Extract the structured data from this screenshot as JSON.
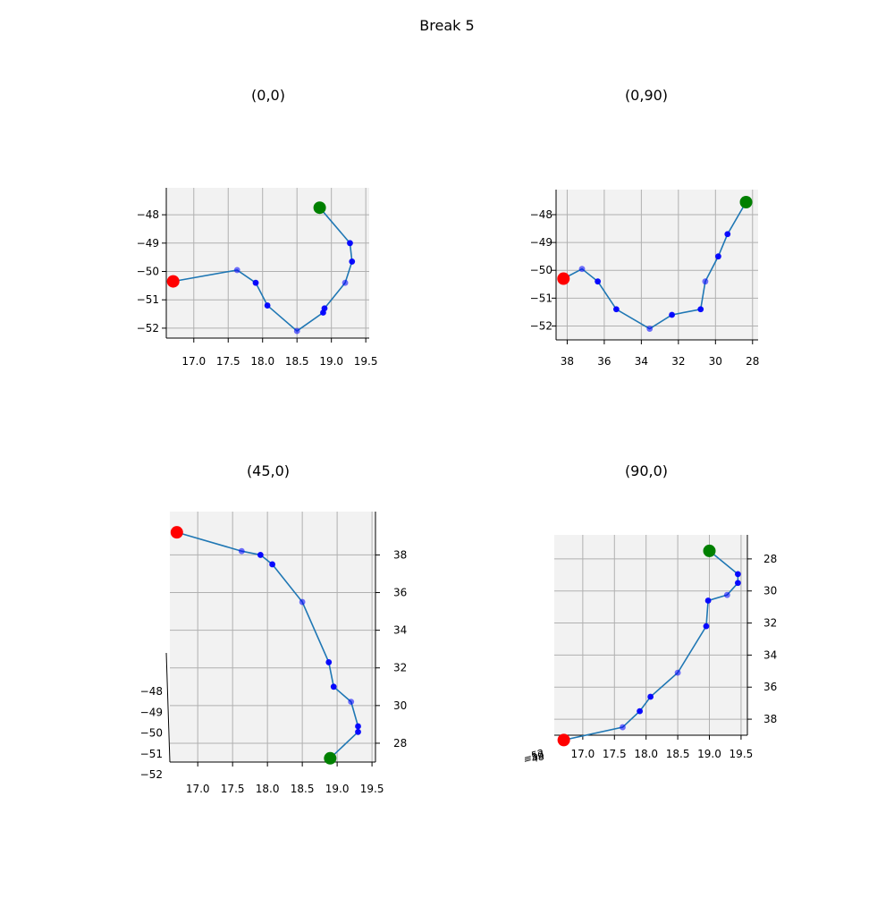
{
  "figure_title": "Break 5",
  "colors": {
    "path": "#1f77b4",
    "point": "#0000ff",
    "start": "#008000",
    "end": "#ff0000",
    "grid": "#b0b0b0",
    "pane": "#f2f2f2"
  },
  "chart_data": [
    {
      "type": "scatter",
      "title": "(0,0)",
      "view": "x-z",
      "xlabel": "",
      "ylabel": "",
      "xticks": [
        "17.0",
        "17.5",
        "18.0",
        "18.5",
        "19.0",
        "19.5"
      ],
      "yticks": [
        "−48",
        "−49",
        "−50",
        "−51",
        "−52"
      ],
      "xlim": [
        16.6,
        19.55
      ],
      "ylim": [
        -52.35,
        -47.05
      ],
      "x": [
        18.83,
        19.27,
        19.3,
        19.2,
        18.9,
        18.88,
        18.5,
        18.07,
        17.9,
        17.63,
        16.7
      ],
      "y": [
        -47.75,
        -49.0,
        -49.65,
        -50.4,
        -51.3,
        -51.45,
        -52.1,
        -51.2,
        -50.4,
        -49.95,
        -50.35
      ],
      "grid": true
    },
    {
      "type": "scatter",
      "title": "(0,90)",
      "view": "y-z",
      "xlabel": "",
      "ylabel": "",
      "xticks": [
        "38",
        "36",
        "34",
        "32",
        "30",
        "28"
      ],
      "yticks": [
        "−48",
        "−49",
        "−50",
        "−51",
        "−52"
      ],
      "xlim": [
        38.6,
        27.7
      ],
      "ylim": [
        -52.5,
        -47.1
      ],
      "x": [
        28.35,
        29.35,
        29.85,
        30.55,
        30.8,
        32.35,
        33.55,
        35.35,
        36.35,
        37.2,
        38.2
      ],
      "y": [
        -47.55,
        -48.7,
        -49.5,
        -50.4,
        -51.4,
        -51.6,
        -52.1,
        -51.4,
        -50.4,
        -49.95,
        -50.3
      ],
      "grid": true
    },
    {
      "type": "scatter",
      "title": "(45,0)",
      "view": "oblique",
      "xlabel": "",
      "ylabel": "",
      "xticks": [
        "17.0",
        "17.5",
        "18.0",
        "18.5",
        "19.0",
        "19.5"
      ],
      "yticks": [
        "28",
        "30",
        "32",
        "34",
        "36",
        "38"
      ],
      "zticks": [
        "−48",
        "−49",
        "−50",
        "−51",
        "−52"
      ],
      "xlim": [
        16.6,
        19.55
      ],
      "ylim": [
        27.0,
        40.3
      ],
      "x": [
        18.9,
        19.3,
        19.3,
        19.2,
        18.95,
        18.88,
        18.5,
        18.07,
        17.9,
        17.63,
        16.7
      ],
      "y": [
        27.2,
        28.6,
        28.9,
        30.2,
        31.0,
        32.3,
        35.5,
        37.5,
        38.0,
        38.2,
        39.2
      ],
      "grid": true
    },
    {
      "type": "scatter",
      "title": "(90,0)",
      "view": "x-y",
      "xlabel": "",
      "ylabel": "",
      "xticks": [
        "17.0",
        "17.5",
        "18.0",
        "18.5",
        "19.0",
        "19.5"
      ],
      "yticks": [
        "28",
        "30",
        "32",
        "34",
        "36",
        "38"
      ],
      "zticks": [
        "−52",
        "−50",
        "−48"
      ],
      "xlim": [
        16.55,
        19.6
      ],
      "ylim": [
        39.0,
        26.5
      ],
      "x": [
        19.0,
        19.45,
        19.45,
        19.28,
        18.98,
        18.95,
        18.5,
        18.07,
        17.9,
        17.63,
        16.7
      ],
      "y": [
        27.5,
        28.95,
        29.5,
        30.25,
        30.6,
        32.2,
        35.1,
        36.6,
        37.5,
        38.5,
        39.3
      ],
      "grid": true
    }
  ]
}
